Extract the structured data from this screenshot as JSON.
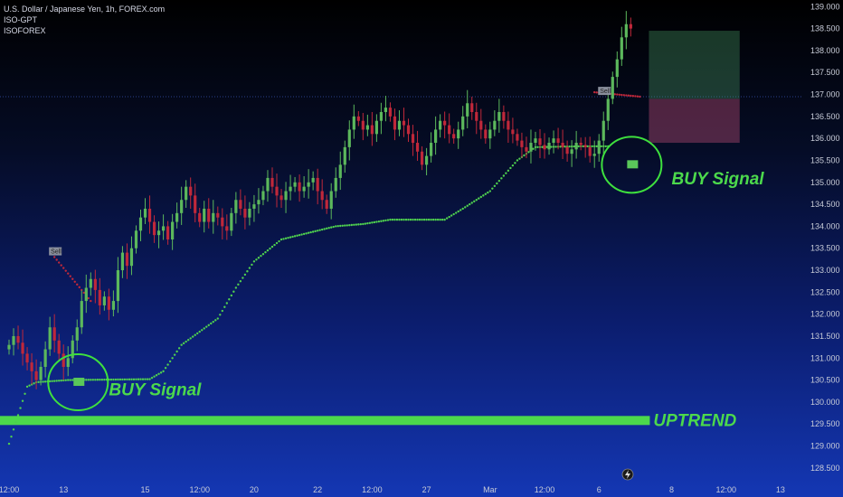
{
  "header": {
    "title": "U.S. Dollar / Japanese Yen, 1h, FOREX.com",
    "indicator_1": "ISO-GPT",
    "indicator_2": "ISOFOREX"
  },
  "colors": {
    "up": "#5cb85c",
    "down": "#c0283a",
    "trail": "#4fd04f",
    "uptrend_bar": "#4cd94c",
    "circle": "#3ee03e"
  },
  "chart_data": {
    "type": "candlestick",
    "instrument": "USDJPY",
    "timeframe": "1h",
    "ylim": [
      128.25,
      139.15
    ],
    "y_ticks": [
      "139.000",
      "138.500",
      "138.000",
      "137.500",
      "137.000",
      "136.500",
      "136.000",
      "135.500",
      "135.000",
      "134.500",
      "134.000",
      "133.500",
      "133.000",
      "132.500",
      "132.000",
      "131.500",
      "131.000",
      "130.500",
      "130.000",
      "129.500",
      "129.000",
      "128.500"
    ],
    "x_ticks": [
      {
        "label": "12:00",
        "i": 0
      },
      {
        "label": "13",
        "i": 12
      },
      {
        "label": "15",
        "i": 30
      },
      {
        "label": "12:00",
        "i": 42
      },
      {
        "label": "20",
        "i": 54
      },
      {
        "label": "22",
        "i": 68
      },
      {
        "label": "12:00",
        "i": 80
      },
      {
        "label": "27",
        "i": 92
      },
      {
        "label": "Mar",
        "i": 106
      },
      {
        "label": "12:00",
        "i": 118
      },
      {
        "label": "6",
        "i": 130
      },
      {
        "label": "8",
        "i": 146
      },
      {
        "label": "12:00",
        "i": 158
      },
      {
        "label": "13",
        "i": 170
      }
    ],
    "closes": [
      131.3,
      131.5,
      131.35,
      131.1,
      130.9,
      130.7,
      130.5,
      130.8,
      131.2,
      131.7,
      131.4,
      131.1,
      130.8,
      131.0,
      131.4,
      131.7,
      132.3,
      132.6,
      132.8,
      132.55,
      132.2,
      132.4,
      132.1,
      132.3,
      133.0,
      133.4,
      133.1,
      133.5,
      133.9,
      134.2,
      134.4,
      134.1,
      133.8,
      133.9,
      134.0,
      133.7,
      134.1,
      134.3,
      134.6,
      134.9,
      134.7,
      134.3,
      134.1,
      134.4,
      134.1,
      134.3,
      134.2,
      134.0,
      133.9,
      134.3,
      134.6,
      134.4,
      134.2,
      134.4,
      134.5,
      134.6,
      134.8,
      135.1,
      134.9,
      134.7,
      134.6,
      134.8,
      134.9,
      135.0,
      134.8,
      134.9,
      135.0,
      135.1,
      134.8,
      134.6,
      134.4,
      134.8,
      135.1,
      135.4,
      135.8,
      136.2,
      136.5,
      136.4,
      136.2,
      136.3,
      136.1,
      136.4,
      136.6,
      136.7,
      136.5,
      136.2,
      136.4,
      136.3,
      136.1,
      135.9,
      135.7,
      135.4,
      135.6,
      135.9,
      136.2,
      136.4,
      136.3,
      136.1,
      136.0,
      136.2,
      136.5,
      136.8,
      136.6,
      136.4,
      136.2,
      136.0,
      136.2,
      136.4,
      136.6,
      136.4,
      136.2,
      136.1,
      135.95,
      135.8,
      135.7,
      135.9,
      136.0,
      135.85,
      135.75,
      135.9,
      136.0,
      135.9,
      135.8,
      135.65,
      135.75,
      135.9,
      135.85,
      135.8,
      135.6,
      135.65,
      135.95,
      136.4,
      136.9,
      137.4,
      137.8,
      138.3,
      138.6,
      138.5
    ],
    "trail": [
      {
        "i": 0,
        "y": 129.05
      },
      {
        "i": 4,
        "y": 130.35
      },
      {
        "i": 6,
        "y": 130.45
      },
      {
        "i": 13,
        "y": 130.5
      },
      {
        "i": 31,
        "y": 130.52
      },
      {
        "i": 34,
        "y": 130.7
      },
      {
        "i": 38,
        "y": 131.3
      },
      {
        "i": 42,
        "y": 131.6
      },
      {
        "i": 46,
        "y": 131.9
      },
      {
        "i": 50,
        "y": 132.6
      },
      {
        "i": 54,
        "y": 133.2
      },
      {
        "i": 60,
        "y": 133.7
      },
      {
        "i": 66,
        "y": 133.85
      },
      {
        "i": 72,
        "y": 134.0
      },
      {
        "i": 78,
        "y": 134.05
      },
      {
        "i": 84,
        "y": 134.15
      },
      {
        "i": 96,
        "y": 134.15
      },
      {
        "i": 100,
        "y": 134.4
      },
      {
        "i": 106,
        "y": 134.8
      },
      {
        "i": 112,
        "y": 135.5
      },
      {
        "i": 116,
        "y": 135.8
      },
      {
        "i": 126,
        "y": 135.82
      },
      {
        "i": 132,
        "y": 135.82
      }
    ],
    "sell_stops": [
      {
        "i0": 10,
        "i1": 18,
        "y0": 133.3,
        "y1": 132.3
      },
      {
        "i0": 129,
        "i1": 139,
        "y0": 137.05,
        "y1": 136.95
      }
    ],
    "trade_box": {
      "i0": 141,
      "i1": 161,
      "entry": 136.9,
      "target": 138.45,
      "stop": 135.9
    },
    "sell_labels": [
      {
        "text": "Sell",
        "i": 10,
        "y": 133.4
      },
      {
        "text": "Sell",
        "i": 131,
        "y": 137.05
      }
    ],
    "buy_markers": [
      {
        "i": 16,
        "y": 130.45
      },
      {
        "i": 138,
        "y": 135.4
      }
    ],
    "annotations": [
      {
        "text": "BUY Signal",
        "i": 22,
        "y": 130.15
      },
      {
        "text": "BUY Signal",
        "i": 146,
        "y": 134.95
      },
      {
        "text": "UPTREND",
        "i": 142,
        "y": 129.45
      }
    ],
    "uptrend_level": 129.58
  }
}
